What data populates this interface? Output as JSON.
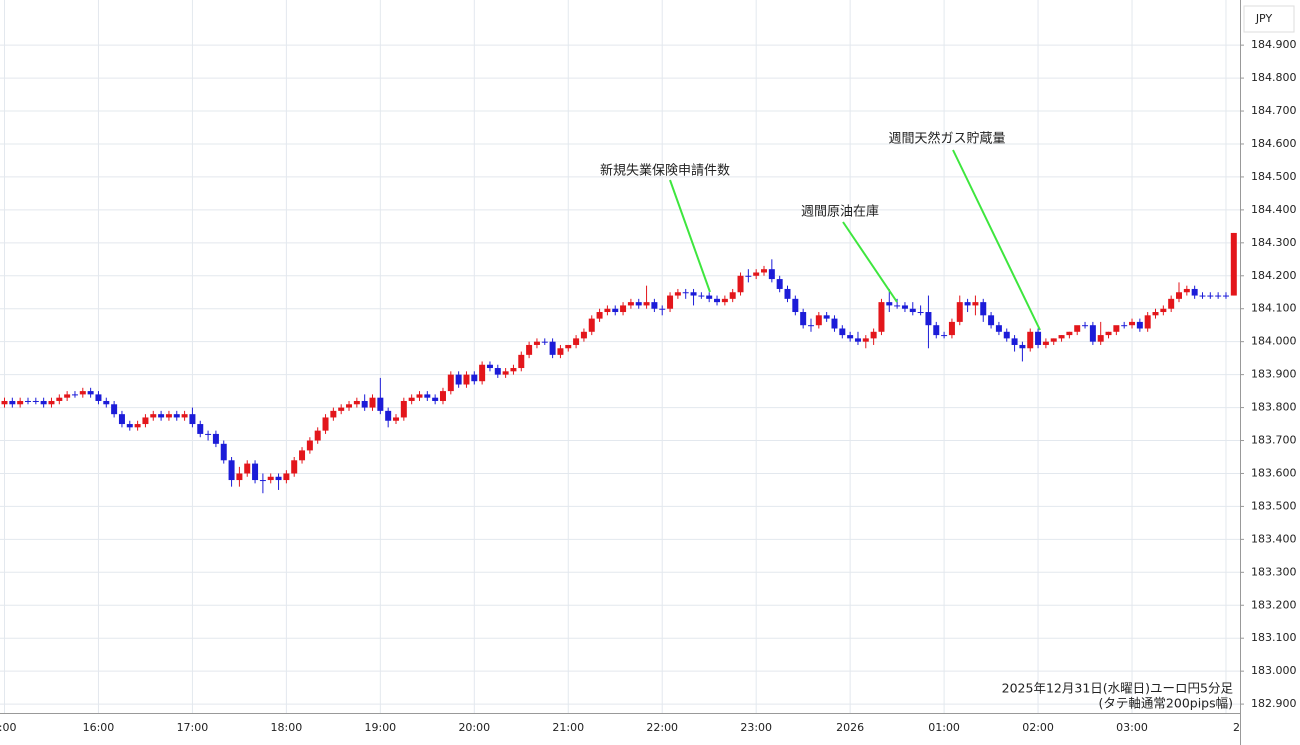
{
  "chart_data": {
    "type": "candlestick",
    "currency": "JPY",
    "note": [
      "2025年12月31日(水曜日)ユーロ円5分足",
      "(タテ軸通常200pips幅)"
    ],
    "annotations": [
      "新規失業保険申請件数",
      "週間原油在庫",
      "週間天然ガス貯蔵量"
    ],
    "up_color": "#e3161b",
    "down_color": "#1c1cd8",
    "grid": true,
    "ylim": [
      182.873,
      185.037
    ],
    "yticks": [
      {
        "value": 182.9,
        "label": "182.900"
      },
      {
        "value": 183.0,
        "label": "183.000"
      },
      {
        "value": 183.1,
        "label": "183.100"
      },
      {
        "value": 183.2,
        "label": "183.200"
      },
      {
        "value": 183.3,
        "label": "183.300"
      },
      {
        "value": 183.4,
        "label": "183.400"
      },
      {
        "value": 183.5,
        "label": "183.500"
      },
      {
        "value": 183.6,
        "label": "183.600"
      },
      {
        "value": 183.7,
        "label": "183.700"
      },
      {
        "value": 183.8,
        "label": "183.800"
      },
      {
        "value": 183.9,
        "label": "183.900"
      },
      {
        "value": 184.0,
        "label": "184.000"
      },
      {
        "value": 184.1,
        "label": "184.100"
      },
      {
        "value": 184.2,
        "label": "184.200"
      },
      {
        "value": 184.3,
        "label": "184.300"
      },
      {
        "value": 184.4,
        "label": "184.400"
      },
      {
        "value": 184.5,
        "label": "184.500"
      },
      {
        "value": 184.6,
        "label": "184.600"
      },
      {
        "value": 184.7,
        "label": "184.700"
      },
      {
        "value": 184.8,
        "label": "184.800"
      },
      {
        "value": 184.9,
        "label": "184.900"
      }
    ],
    "categories": [
      ":00",
      null,
      null,
      null,
      null,
      null,
      null,
      null,
      null,
      null,
      null,
      null,
      "16:00",
      null,
      null,
      null,
      null,
      null,
      null,
      null,
      null,
      null,
      null,
      null,
      "17:00",
      null,
      null,
      null,
      null,
      null,
      null,
      null,
      null,
      null,
      null,
      null,
      "18:00",
      null,
      null,
      null,
      null,
      null,
      null,
      null,
      null,
      null,
      null,
      null,
      "19:00",
      null,
      null,
      null,
      null,
      null,
      null,
      null,
      null,
      null,
      null,
      null,
      "20:00",
      null,
      null,
      null,
      null,
      null,
      null,
      null,
      null,
      null,
      null,
      null,
      "21:00",
      null,
      null,
      null,
      null,
      null,
      null,
      null,
      null,
      null,
      null,
      null,
      "22:00",
      null,
      null,
      null,
      null,
      null,
      null,
      null,
      null,
      null,
      null,
      null,
      "23:00",
      null,
      null,
      null,
      null,
      null,
      null,
      null,
      null,
      null,
      null,
      null,
      "2026",
      null,
      null,
      null,
      null,
      null,
      null,
      null,
      null,
      null,
      null,
      null,
      "01:00",
      null,
      null,
      null,
      null,
      null,
      null,
      null,
      null,
      null,
      null,
      null,
      "02:00",
      null,
      null,
      null,
      null,
      null,
      null,
      null,
      null,
      null,
      null,
      null,
      "03:00",
      null,
      null,
      null,
      null,
      null,
      null,
      null,
      null,
      null,
      null,
      null,
      "2",
      null
    ],
    "open": [
      183.81,
      183.82,
      183.81,
      183.82,
      183.82,
      183.82,
      183.81,
      183.82,
      183.83,
      183.84,
      183.84,
      183.85,
      183.84,
      183.82,
      183.81,
      183.78,
      183.75,
      183.74,
      183.75,
      183.77,
      183.78,
      183.77,
      183.78,
      183.77,
      183.78,
      183.75,
      183.72,
      183.72,
      183.69,
      183.64,
      183.58,
      183.6,
      183.63,
      183.58,
      183.58,
      183.59,
      183.58,
      183.6,
      183.64,
      183.67,
      183.7,
      183.73,
      183.77,
      183.79,
      183.8,
      183.81,
      183.82,
      183.8,
      183.83,
      183.79,
      183.76,
      183.77,
      183.82,
      183.83,
      183.84,
      183.83,
      183.82,
      183.85,
      183.9,
      183.87,
      183.9,
      183.88,
      183.93,
      183.92,
      183.9,
      183.91,
      183.92,
      183.96,
      183.99,
      184.0,
      184.0,
      183.96,
      183.98,
      183.99,
      184.01,
      184.03,
      184.07,
      184.09,
      184.1,
      184.09,
      184.11,
      184.12,
      184.11,
      184.12,
      184.1,
      184.1,
      184.14,
      184.15,
      184.15,
      184.14,
      184.14,
      184.13,
      184.12,
      184.13,
      184.15,
      184.2,
      184.2,
      184.21,
      184.22,
      184.19,
      184.16,
      184.13,
      184.09,
      184.05,
      184.05,
      184.08,
      184.07,
      184.04,
      184.02,
      184.01,
      184.0,
      184.01,
      184.03,
      184.12,
      184.11,
      184.11,
      184.1,
      184.09,
      184.09,
      184.05,
      184.02,
      184.02,
      184.06,
      184.12,
      184.11,
      184.12,
      184.08,
      184.05,
      184.03,
      184.01,
      183.99,
      183.98,
      184.03,
      183.99,
      184.0,
      184.01,
      184.02,
      184.03,
      184.05,
      184.05,
      184.0,
      184.02,
      184.03,
      184.05,
      184.05,
      184.06,
      184.04,
      184.08,
      184.09,
      184.1,
      184.13,
      184.15,
      184.16,
      184.14,
      184.14,
      184.14,
      184.14,
      184.14
    ],
    "high": [
      183.83,
      183.83,
      183.83,
      183.83,
      183.83,
      183.83,
      183.83,
      183.84,
      183.85,
      183.85,
      183.86,
      183.86,
      183.85,
      183.83,
      183.82,
      183.79,
      183.76,
      183.76,
      183.78,
      183.79,
      183.79,
      183.79,
      183.79,
      183.79,
      183.8,
      183.76,
      183.73,
      183.73,
      183.7,
      183.65,
      183.62,
      183.64,
      183.64,
      183.6,
      183.6,
      183.6,
      183.61,
      183.65,
      183.68,
      183.71,
      183.74,
      183.78,
      183.8,
      183.81,
      183.82,
      183.83,
      183.84,
      183.84,
      183.89,
      183.8,
      183.78,
      183.83,
      183.84,
      183.85,
      183.85,
      183.84,
      183.86,
      183.91,
      183.91,
      183.91,
      183.91,
      183.94,
      183.94,
      183.93,
      183.92,
      183.93,
      183.97,
      184.0,
      184.01,
      184.01,
      184.01,
      183.99,
      183.99,
      184.02,
      184.04,
      184.08,
      184.1,
      184.11,
      184.11,
      184.12,
      184.13,
      184.13,
      184.17,
      184.13,
      184.11,
      184.15,
      184.16,
      184.16,
      184.16,
      184.15,
      184.15,
      184.14,
      184.14,
      184.16,
      184.21,
      184.22,
      184.22,
      184.23,
      184.25,
      184.2,
      184.17,
      184.14,
      184.1,
      184.07,
      184.09,
      184.09,
      184.08,
      184.05,
      184.03,
      184.03,
      184.02,
      184.04,
      184.13,
      184.16,
      184.13,
      184.12,
      184.12,
      184.11,
      184.14,
      184.06,
      184.03,
      184.07,
      184.14,
      184.13,
      184.14,
      184.13,
      184.09,
      184.06,
      184.04,
      184.02,
      184.0,
      184.04,
      184.04,
      184.01,
      184.01,
      184.02,
      184.03,
      184.04,
      184.06,
      184.06,
      184.06,
      184.03,
      184.04,
      184.06,
      184.07,
      184.07,
      184.09,
      184.1,
      184.11,
      184.14,
      184.18,
      184.17,
      184.17,
      184.15,
      184.15,
      184.15,
      184.15,
      184.33
    ],
    "low": [
      183.8,
      183.8,
      183.8,
      183.81,
      183.81,
      183.8,
      183.8,
      183.81,
      183.82,
      183.83,
      183.83,
      183.83,
      183.81,
      183.8,
      183.77,
      183.74,
      183.73,
      183.73,
      183.74,
      183.76,
      183.76,
      183.76,
      183.76,
      183.76,
      183.74,
      183.71,
      183.7,
      183.68,
      183.63,
      183.56,
      183.56,
      183.59,
      183.57,
      183.54,
      183.57,
      183.55,
      183.57,
      183.59,
      183.63,
      183.66,
      183.69,
      183.72,
      183.76,
      183.78,
      183.79,
      183.8,
      183.79,
      183.79,
      183.78,
      183.74,
      183.75,
      183.76,
      183.81,
      183.82,
      183.82,
      183.81,
      183.81,
      183.84,
      183.86,
      183.86,
      183.87,
      183.87,
      183.91,
      183.89,
      183.89,
      183.9,
      183.91,
      183.95,
      183.98,
      183.99,
      183.95,
      183.95,
      183.97,
      183.98,
      184.0,
      184.02,
      184.06,
      184.08,
      184.08,
      184.08,
      184.1,
      184.1,
      184.1,
      184.09,
      184.08,
      184.09,
      184.13,
      184.13,
      184.11,
      184.13,
      184.12,
      184.11,
      184.11,
      184.12,
      184.14,
      184.18,
      184.19,
      184.2,
      184.18,
      184.15,
      184.12,
      184.08,
      184.04,
      184.03,
      184.04,
      184.06,
      184.03,
      184.01,
      184.0,
      183.99,
      183.98,
      183.99,
      184.02,
      184.09,
      184.1,
      184.09,
      184.08,
      184.08,
      183.98,
      184.01,
      184.01,
      184.01,
      184.05,
      184.09,
      184.08,
      184.06,
      184.04,
      184.02,
      184.0,
      183.97,
      183.94,
      183.97,
      183.98,
      183.98,
      183.99,
      184.0,
      184.01,
      184.02,
      184.04,
      183.99,
      183.99,
      184.01,
      184.02,
      184.04,
      184.04,
      184.03,
      184.03,
      184.07,
      184.08,
      184.09,
      184.12,
      184.14,
      184.13,
      184.13,
      184.13,
      184.13,
      184.13,
      184.14
    ],
    "close": [
      183.82,
      183.81,
      183.82,
      183.82,
      183.82,
      183.81,
      183.82,
      183.83,
      183.84,
      183.84,
      183.85,
      183.84,
      183.82,
      183.81,
      183.78,
      183.75,
      183.74,
      183.75,
      183.77,
      183.78,
      183.77,
      183.78,
      183.77,
      183.78,
      183.75,
      183.72,
      183.72,
      183.69,
      183.64,
      183.58,
      183.6,
      183.63,
      183.58,
      183.58,
      183.59,
      183.58,
      183.6,
      183.64,
      183.67,
      183.7,
      183.73,
      183.77,
      183.79,
      183.8,
      183.81,
      183.82,
      183.8,
      183.83,
      183.79,
      183.76,
      183.77,
      183.82,
      183.83,
      183.84,
      183.83,
      183.82,
      183.85,
      183.9,
      183.87,
      183.9,
      183.88,
      183.93,
      183.92,
      183.9,
      183.91,
      183.92,
      183.96,
      183.99,
      184.0,
      184.0,
      183.96,
      183.98,
      183.99,
      184.01,
      184.03,
      184.07,
      184.09,
      184.1,
      184.09,
      184.11,
      184.12,
      184.11,
      184.12,
      184.1,
      184.1,
      184.14,
      184.15,
      184.15,
      184.14,
      184.14,
      184.13,
      184.12,
      184.13,
      184.15,
      184.2,
      184.2,
      184.21,
      184.22,
      184.19,
      184.16,
      184.13,
      184.09,
      184.05,
      184.05,
      184.08,
      184.07,
      184.04,
      184.02,
      184.01,
      184.0,
      184.01,
      184.03,
      184.12,
      184.11,
      184.11,
      184.1,
      184.09,
      184.09,
      184.05,
      184.02,
      184.02,
      184.06,
      184.12,
      184.11,
      184.12,
      184.08,
      184.05,
      184.03,
      184.01,
      183.99,
      183.98,
      184.03,
      183.99,
      184.0,
      184.01,
      184.02,
      184.03,
      184.05,
      184.05,
      184.0,
      184.02,
      184.03,
      184.05,
      184.05,
      184.06,
      184.04,
      184.08,
      184.09,
      184.1,
      184.13,
      184.15,
      184.16,
      184.14,
      184.14,
      184.14,
      184.14,
      184.14,
      184.33
    ]
  }
}
